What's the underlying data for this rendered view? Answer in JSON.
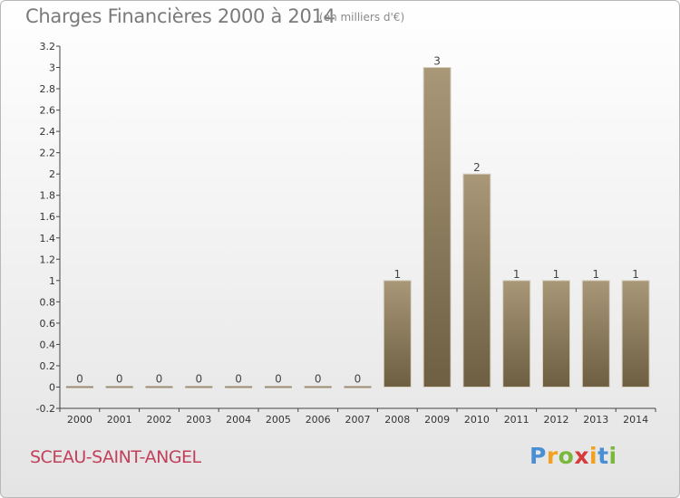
{
  "title": "Charges Financières 2000 à 2014",
  "subtitle": "(en milliers d'€)",
  "place_name": "SCEAU-SAINT-ANGEL",
  "logo_text": [
    "P",
    "r",
    "o",
    "x",
    "i",
    "t",
    "i"
  ],
  "logo_colors": [
    "#4a8fd4",
    "#f2a01f",
    "#7ab83b",
    "#d63a3a",
    "#f2a01f",
    "#4a8fd4",
    "#7ab83b"
  ],
  "chart_data": {
    "type": "bar",
    "categories": [
      "2000",
      "2001",
      "2002",
      "2003",
      "2004",
      "2005",
      "2006",
      "2007",
      "2008",
      "2009",
      "2010",
      "2011",
      "2012",
      "2013",
      "2014"
    ],
    "values": [
      0,
      0,
      0,
      0,
      0,
      0,
      0,
      0,
      1,
      3,
      2,
      1,
      1,
      1,
      1
    ],
    "data_labels": [
      "0",
      "0",
      "0",
      "0",
      "0",
      "0",
      "0",
      "0",
      "1",
      "3",
      "2",
      "1",
      "1",
      "1",
      "1"
    ],
    "title": "Charges Financières 2000 à 2014",
    "xlabel": "",
    "ylabel": "",
    "ylim": [
      -0.2,
      3.2
    ],
    "yticks": [
      "-0.2",
      "0",
      "0.2",
      "0.4",
      "0.6",
      "0.8",
      "1",
      "1.2",
      "1.4",
      "1.6",
      "1.8",
      "2",
      "2.2",
      "2.4",
      "2.6",
      "2.8",
      "3",
      "3.2"
    ],
    "grid": false,
    "bar_color": "#8b7b5e"
  }
}
